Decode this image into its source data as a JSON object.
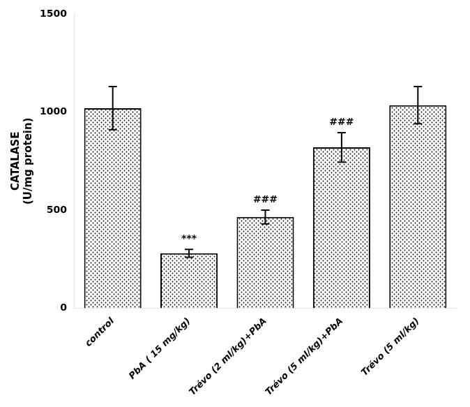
{
  "chart_data": {
    "type": "bar",
    "y_label": "CATALASE\n(U/mg protein)",
    "categories": [
      "control",
      "PbA ( 15 mg/kg)",
      "Trévo (2 ml/kg)+PbA",
      "Trévo (5 ml/kg)+PbA",
      "Trévo (5 ml/kg)"
    ],
    "values": [
      1020,
      280,
      465,
      820,
      1035
    ],
    "errors": [
      110,
      20,
      35,
      75,
      95
    ],
    "annotations": [
      null,
      "***",
      "###",
      "###",
      null
    ],
    "color": "#ffffff",
    "ylim": [
      0,
      1500
    ],
    "yticks": [
      0,
      500,
      1000,
      1500
    ],
    "grid": false
  }
}
